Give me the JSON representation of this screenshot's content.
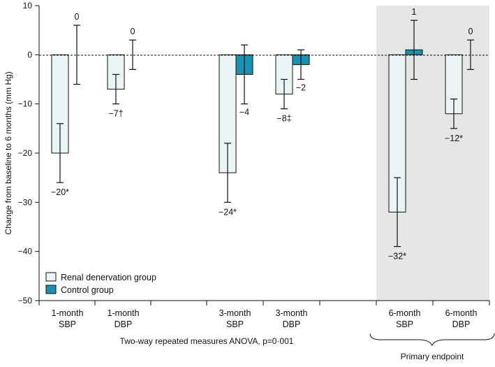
{
  "chart_data": {
    "type": "bar",
    "ylabel": "Change from baseline to 6 months (mm Hg)",
    "xlabel": "",
    "ylim": [
      -50,
      10
    ],
    "yticks": [
      10,
      0,
      -10,
      -20,
      -30,
      -40,
      -50
    ],
    "reference_line": 0,
    "groups": [
      {
        "label_top": "1-month",
        "label_bottom": "SBP",
        "renal": -20,
        "control": 0,
        "renal_label": "−20*",
        "control_label": "0",
        "renal_err": [
          -26,
          -14
        ],
        "control_err": [
          -6,
          6
        ]
      },
      {
        "label_top": "1-month",
        "label_bottom": "DBP",
        "renal": -7,
        "control": 0,
        "renal_label": "−7†",
        "control_label": "0",
        "renal_err": [
          -10,
          -4
        ],
        "control_err": [
          -3,
          3
        ]
      },
      {
        "label_top": "3-month",
        "label_bottom": "SBP",
        "renal": -24,
        "control": -4,
        "renal_label": "−24*",
        "control_label": "−4",
        "renal_err": [
          -30,
          -18
        ],
        "control_err": [
          -10,
          2
        ]
      },
      {
        "label_top": "3-month",
        "label_bottom": "DBP",
        "renal": -8,
        "control": -2,
        "renal_label": "−8‡",
        "control_label": "−2",
        "renal_err": [
          -11,
          -5
        ],
        "control_err": [
          -5,
          1
        ]
      },
      {
        "label_top": "6-month",
        "label_bottom": "SBP",
        "renal": -32,
        "control": 1,
        "renal_label": "−32*",
        "control_label": "1",
        "renal_err": [
          -39,
          -25
        ],
        "control_err": [
          -5,
          7
        ]
      },
      {
        "label_top": "6-month",
        "label_bottom": "DBP",
        "renal": -12,
        "control": 0,
        "renal_label": "−12*",
        "control_label": "0",
        "renal_err": [
          -15,
          -9
        ],
        "control_err": [
          -3,
          3
        ]
      }
    ],
    "series": [
      {
        "name": "Renal denervation group",
        "color": "#e9f4f7"
      },
      {
        "name": "Control group",
        "color": "#1a91b0"
      }
    ],
    "legend_position": "bottom-left",
    "footnote": "Two-way repeated measures ANOVA, p=0·001",
    "highlight_label": "Primary endpoint",
    "highlight_color": "#e6e6e6"
  }
}
